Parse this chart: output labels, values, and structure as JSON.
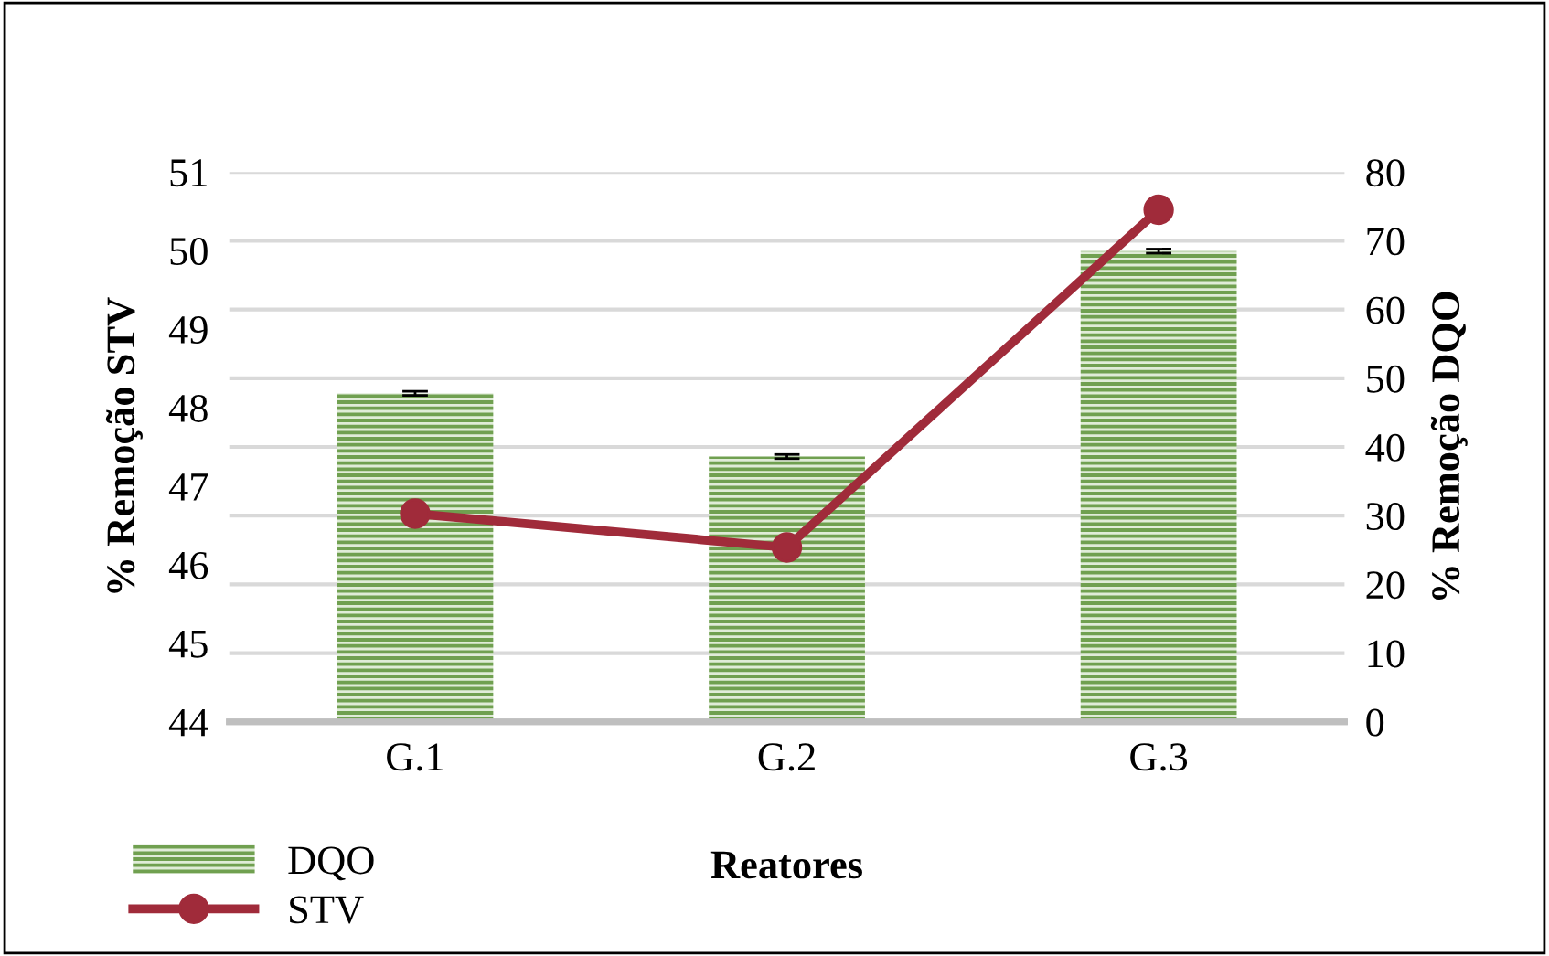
{
  "chart_data": {
    "type": "bar",
    "xlabel": "Reatores",
    "ylabel": "% Remoção STV",
    "y2label": "% Remoção DQO",
    "categories": [
      "G.1",
      "G.2",
      "G.3"
    ],
    "series": [
      {
        "name": "DQO",
        "axis": "y2",
        "color": "#70a050",
        "values": [
          47.8,
          38.6,
          68.5
        ],
        "errors": [
          0.3,
          0.3,
          0.3
        ]
      },
      {
        "name": "STV",
        "type": "line",
        "axis": "y",
        "color": "#a02b3a",
        "values": [
          46.65,
          46.22,
          50.52
        ],
        "marker": "circle",
        "line_style": "solid"
      }
    ],
    "ylim": [
      44,
      51
    ],
    "yticks": [
      44,
      45,
      46,
      47,
      48,
      49,
      50,
      51
    ],
    "y2lim": [
      0,
      80
    ],
    "y2ticks": [
      0,
      10,
      20,
      30,
      40,
      50,
      60,
      70,
      80
    ],
    "grid": "y",
    "legend": "bottom left"
  }
}
